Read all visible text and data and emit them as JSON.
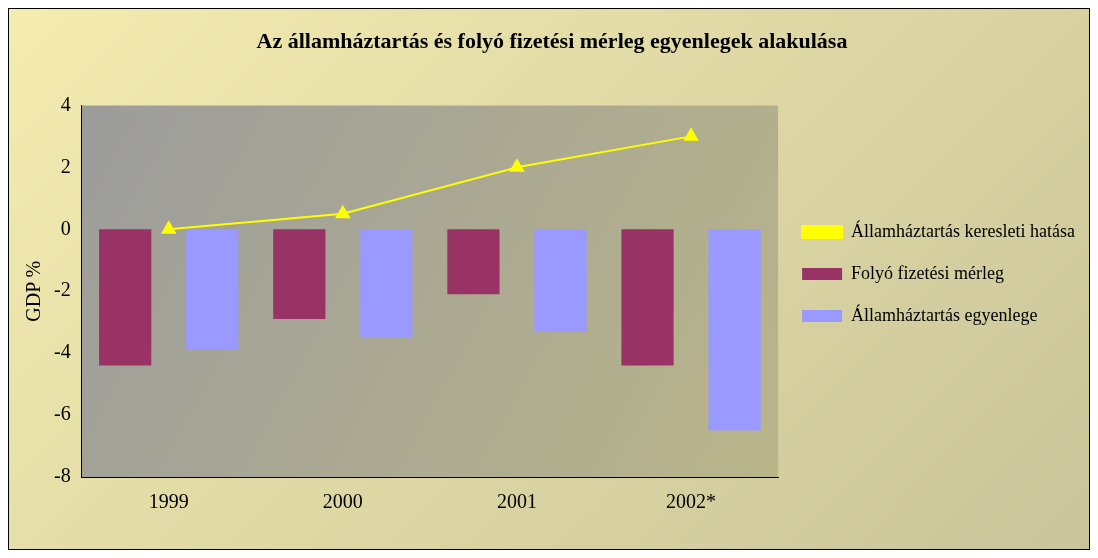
{
  "chart_data": {
    "type": "bar",
    "title": "Az államháztartás és folyó fizetési mérleg egyenlegek alakulása",
    "ylabel": "GDP %",
    "categories": [
      "1999",
      "2000",
      "2001",
      "2002*"
    ],
    "series": [
      {
        "name": "Folyó fizetési mérleg",
        "color": "#993366",
        "values": [
          -4.4,
          -2.9,
          -2.1,
          -4.4
        ]
      },
      {
        "name": "Államháztartás egyenlege",
        "color": "#9999ff",
        "values": [
          -3.9,
          -3.5,
          -3.3,
          -6.5
        ]
      },
      {
        "name": "Államháztartás keresleti hatása",
        "type": "line",
        "color": "#ffff00",
        "marker": "triangle",
        "values": [
          0,
          0.5,
          2,
          3
        ]
      }
    ],
    "ylim": [
      -8,
      4
    ],
    "yticks": [
      -8,
      -6,
      -4,
      -2,
      0,
      2,
      4
    ],
    "grid": false,
    "legend": "right"
  }
}
